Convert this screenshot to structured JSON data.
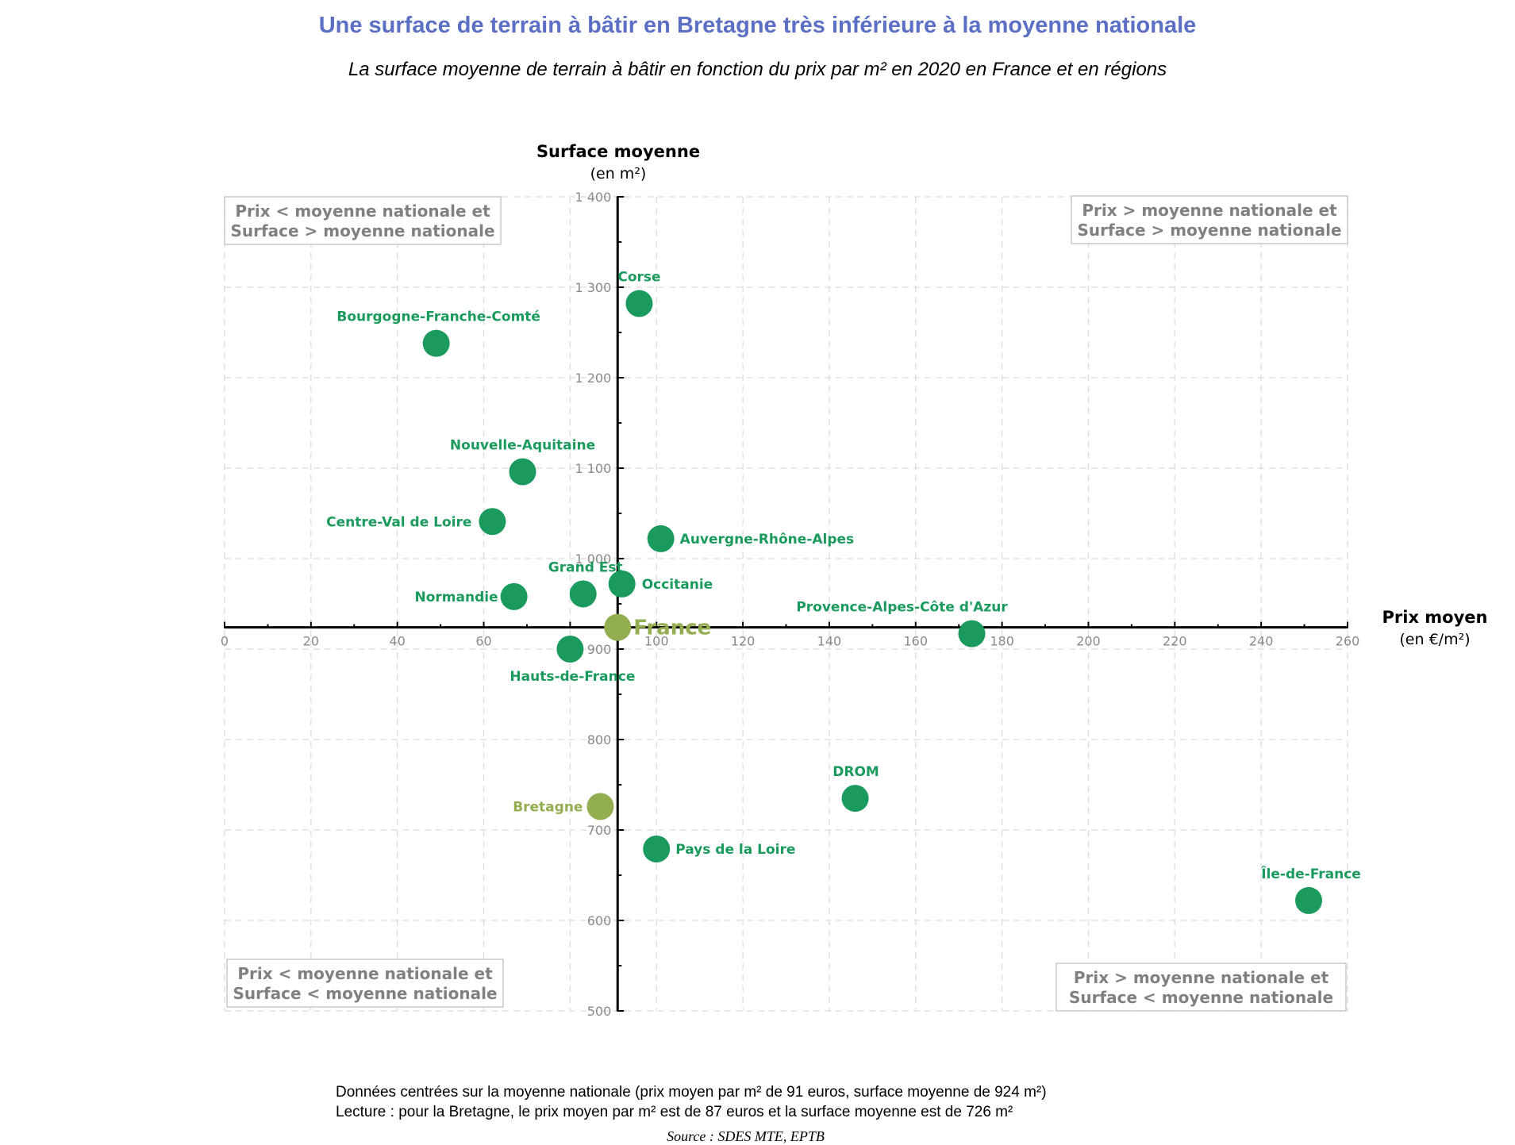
{
  "title": "Une surface de terrain à bâtir en Bretagne très inférieure à la moyenne nationale",
  "subtitle": "La surface moyenne de terrain à bâtir en fonction du prix par m² en 2020 en France et en régions",
  "notes": [
    "Données centrées sur la moyenne nationale (prix moyen par m² de 91 euros, surface moyenne de 924 m²)",
    "Lecture : pour la Bretagne, le prix moyen par m² est de 87 euros et la surface moyenne est de 726 m²"
  ],
  "source": "Source : SDES MTE, EPTB",
  "chart_data": {
    "type": "scatter",
    "xlabel": "Prix moyen",
    "xlabel_unit": "(en €/m²)",
    "ylabel": "Surface moyenne",
    "ylabel_unit": "(en m²)",
    "xlim": [
      0,
      260
    ],
    "ylim": [
      500,
      1400
    ],
    "x_ticks": [
      0,
      20,
      40,
      60,
      80,
      100,
      120,
      140,
      160,
      180,
      200,
      220,
      240,
      260
    ],
    "x_tick_labels": [
      "0",
      "20",
      "40",
      "60",
      "80",
      "100",
      "120",
      "140",
      "160",
      "180",
      "200",
      "220",
      "240",
      "260"
    ],
    "y_ticks": [
      500,
      600,
      700,
      800,
      900,
      1000,
      1100,
      1200,
      1300,
      1400
    ],
    "y_tick_labels": [
      "500",
      "600",
      "700",
      "800",
      "900",
      "1 000",
      "1 100",
      "1 200",
      "1 300",
      "1 400"
    ],
    "axis_crossing": {
      "x": 91,
      "y": 924
    },
    "grid": true,
    "colors": {
      "region": "#1a9a5c",
      "highlight": "#93ad51",
      "quadrant_text": "#808080",
      "axis_tick_text": "#8a8a8a"
    },
    "quadrant_labels": [
      {
        "position": "top-left",
        "line1": "Prix < moyenne nationale et",
        "line2": "Surface > moyenne nationale"
      },
      {
        "position": "top-right",
        "line1": "Prix > moyenne nationale et",
        "line2": "Surface > moyenne nationale"
      },
      {
        "position": "bottom-left",
        "line1": "Prix < moyenne nationale et",
        "line2": "Surface < moyenne nationale"
      },
      {
        "position": "bottom-right",
        "line1": "Prix > moyenne nationale et",
        "line2": "Surface < moyenne nationale"
      }
    ],
    "points": [
      {
        "name": "Corse",
        "x": 96,
        "y": 1282,
        "highlight": false
      },
      {
        "name": "Bourgogne-Franche-Comté",
        "x": 49,
        "y": 1238,
        "highlight": false
      },
      {
        "name": "Nouvelle-Aquitaine",
        "x": 69,
        "y": 1096,
        "highlight": false
      },
      {
        "name": "Centre-Val de Loire",
        "x": 62,
        "y": 1041,
        "highlight": false
      },
      {
        "name": "Auvergne-Rhône-Alpes",
        "x": 101,
        "y": 1022,
        "highlight": false
      },
      {
        "name": "Grand Est",
        "x": 83,
        "y": 961,
        "highlight": false
      },
      {
        "name": "Occitanie",
        "x": 92,
        "y": 972,
        "highlight": false
      },
      {
        "name": "Normandie",
        "x": 67,
        "y": 958,
        "highlight": false
      },
      {
        "name": "France",
        "x": 91,
        "y": 924,
        "highlight": true
      },
      {
        "name": "Hauts-de-France",
        "x": 80,
        "y": 900,
        "highlight": false
      },
      {
        "name": "Provence-Alpes-Côte d'Azur",
        "x": 173,
        "y": 917,
        "highlight": false
      },
      {
        "name": "DROM",
        "x": 146,
        "y": 735,
        "highlight": false
      },
      {
        "name": "Bretagne",
        "x": 87,
        "y": 726,
        "highlight": true
      },
      {
        "name": "Pays de la Loire",
        "x": 100,
        "y": 679,
        "highlight": false
      },
      {
        "name": "Île-de-France",
        "x": 251,
        "y": 622,
        "highlight": false
      }
    ]
  }
}
